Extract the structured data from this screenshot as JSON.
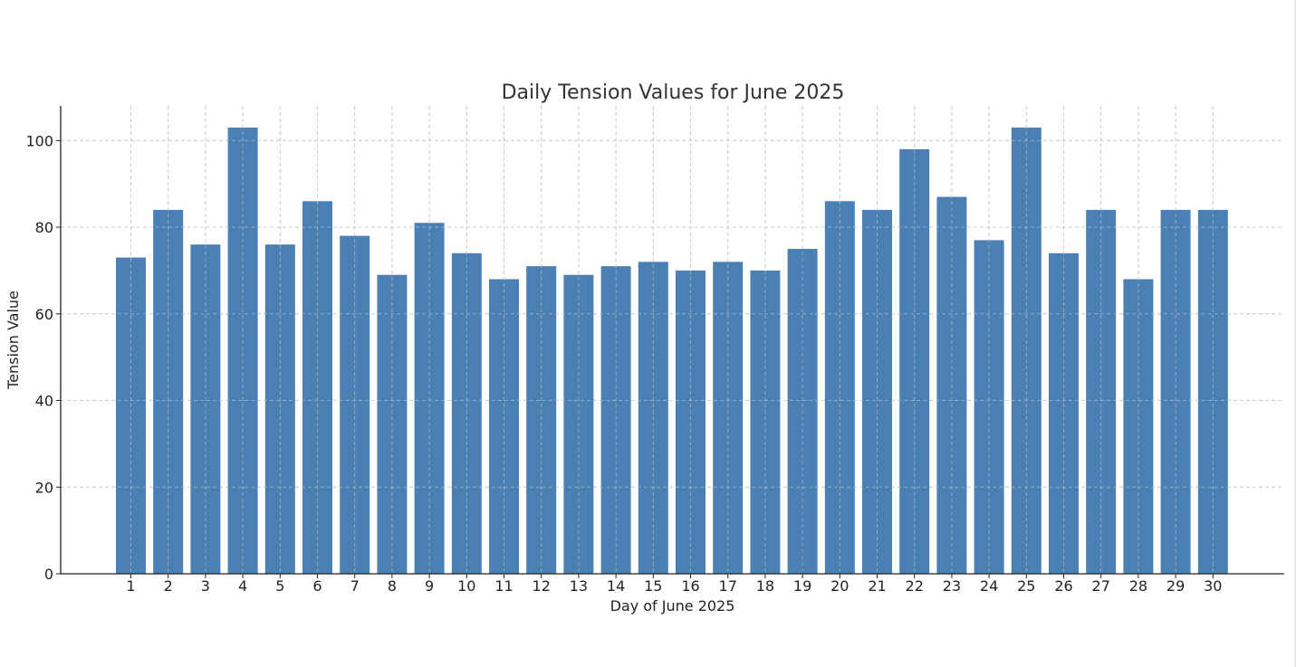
{
  "chart_data": {
    "type": "bar",
    "title": "Daily Tension Values for June 2025",
    "xlabel": "Day of June 2025",
    "ylabel": "Tension Value",
    "categories": [
      "1",
      "2",
      "3",
      "4",
      "5",
      "6",
      "7",
      "8",
      "9",
      "10",
      "11",
      "12",
      "13",
      "14",
      "15",
      "16",
      "17",
      "18",
      "19",
      "20",
      "21",
      "22",
      "23",
      "24",
      "25",
      "26",
      "27",
      "28",
      "29",
      "30"
    ],
    "values": [
      73,
      84,
      76,
      103,
      76,
      86,
      78,
      69,
      81,
      74,
      68,
      71,
      69,
      71,
      72,
      70,
      72,
      70,
      75,
      86,
      84,
      98,
      87,
      77,
      103,
      74,
      84,
      68,
      84,
      84
    ],
    "ylim": [
      0,
      108
    ],
    "yticks": [
      0,
      20,
      40,
      60,
      80,
      100
    ],
    "grid": true,
    "bar_color": "#4a80b4",
    "grid_color": "#cccccc"
  }
}
